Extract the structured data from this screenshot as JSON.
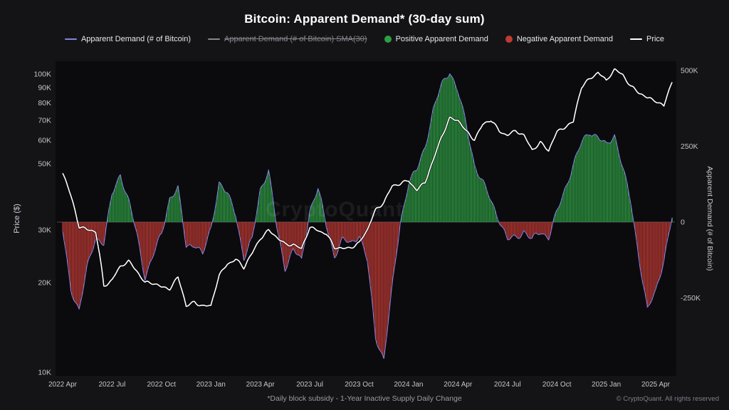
{
  "title": "Bitcoin: Apparent Demand* (30-day sum)",
  "watermark": "CryptoQuant",
  "footnote": "*Daily block subsidy - 1-Year Inactive Supply Daily Change",
  "copyright": "© CryptoQuant. All rights reserved",
  "colors": {
    "background": "#141417",
    "plot_background": "#0b0b0e",
    "axis_text": "#c2c2ca",
    "axis_title": "#cccdd4",
    "zero_line": "#4a4a52",
    "positive": "#2f9e44",
    "negative": "#c03a34",
    "demand_line": "#8583e0",
    "price_line": "#ffffff"
  },
  "legend": [
    {
      "label": "Apparent Demand (# of Bitcoin)",
      "type": "line",
      "color": "#8583e0",
      "disabled": false
    },
    {
      "label": "Apparent Demand (# of Bitcoin) SMA(30)",
      "type": "line",
      "color": "#86868d",
      "disabled": true
    },
    {
      "label": "Positive Apparent Demand",
      "type": "dot",
      "color": "#2f9e44",
      "disabled": false
    },
    {
      "label": "Negative Apparent Demand",
      "type": "dot",
      "color": "#c03a34",
      "disabled": false
    },
    {
      "label": "Price",
      "type": "line",
      "color": "#ffffff",
      "disabled": false
    }
  ],
  "chart_data": {
    "type": "bar",
    "title": "Bitcoin: Apparent Demand* (30-day sum)",
    "x_start": "2022-04",
    "x_step_months": 0.5,
    "x_ticks": [
      "2022 Apr",
      "2022 Jul",
      "2022 Oct",
      "2023 Jan",
      "2023 Apr",
      "2023 Jul",
      "2023 Oct",
      "2024 Jan",
      "2024 Apr",
      "2024 Jul",
      "2024 Oct",
      "2025 Jan",
      "2025 Apr"
    ],
    "left_axis": {
      "label": "Price ($)",
      "scale": "log",
      "unit": "USD",
      "ticks": [
        "100K",
        "90K",
        "80K",
        "70K",
        "60K",
        "50K",
        "30K",
        "20K",
        "10K"
      ],
      "range": [
        "10K",
        "108K"
      ]
    },
    "right_axis": {
      "label": "Apparent Demand (# of Bitcoin)",
      "scale": "linear",
      "unit": "BTC",
      "ticks": [
        "500K",
        "250K",
        "0",
        "-250K"
      ],
      "range": [
        "-500K",
        "510K"
      ]
    },
    "series": [
      {
        "name": "Apparent Demand (# of Bitcoin)",
        "axis": "right",
        "render": "bars+line",
        "unit": "thousand BTC",
        "values": [
          -30,
          -220,
          -290,
          -150,
          -50,
          -70,
          90,
          160,
          70,
          -40,
          -180,
          -110,
          -40,
          80,
          110,
          -80,
          -70,
          -110,
          -20,
          130,
          90,
          30,
          -120,
          -60,
          110,
          170,
          -20,
          -150,
          -90,
          -130,
          40,
          110,
          -10,
          -110,
          -60,
          -70,
          -40,
          -130,
          -380,
          -450,
          -220,
          0,
          130,
          170,
          250,
          370,
          450,
          500,
          430,
          320,
          190,
          130,
          70,
          10,
          -60,
          -50,
          -30,
          -60,
          -30,
          -50,
          30,
          110,
          190,
          260,
          300,
          280,
          250,
          290,
          180,
          60,
          -120,
          -290,
          -230,
          -120,
          15
        ]
      },
      {
        "name": "Price",
        "axis": "left",
        "render": "line",
        "unit": "thousand USD",
        "values": [
          46.5,
          39,
          31,
          30,
          29.5,
          19.5,
          20.5,
          22.5,
          23.5,
          22,
          20,
          19.8,
          19.3,
          19.2,
          20.8,
          16.6,
          17.2,
          16.8,
          16.6,
          21,
          23.2,
          24,
          22.3,
          25,
          28.3,
          29.9,
          28.2,
          26.9,
          27,
          25.8,
          30.4,
          30.1,
          29.2,
          26.1,
          25.9,
          26.4,
          27.1,
          29.9,
          35,
          37.4,
          41.9,
          42.7,
          44.1,
          41,
          43.1,
          51.1,
          62,
          71,
          69.6,
          64.2,
          60.7,
          67.5,
          69.8,
          64.6,
          62.7,
          64.2,
          62,
          56,
          59,
          55,
          63.8,
          67,
          69,
          90,
          96.5,
          102,
          94.5,
          103,
          100,
          91,
          86,
          83,
          82,
          78,
          94
        ]
      }
    ]
  }
}
